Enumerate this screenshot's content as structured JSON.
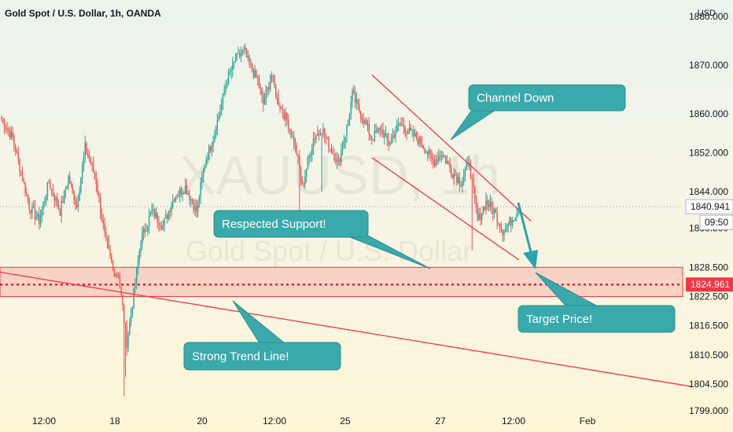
{
  "header": {
    "title": "Gold Spot / U.S. Dollar, 1h, OANDA",
    "currency": "USD"
  },
  "watermark": {
    "symbol": "XAUUSD, 1h",
    "description": "Gold Spot / U.S. Dollar"
  },
  "colors": {
    "up": "#26a69a",
    "down": "#ef5350",
    "annotation": "#f23645",
    "callout": "#3aa9ab",
    "price_tag": "#f23645"
  },
  "chart_data": {
    "type": "candlestick",
    "ylim": [
      1799,
      1880
    ],
    "x_ticks": [
      "12:00",
      "18",
      "20",
      "12:00",
      "25",
      "27",
      "12:00",
      "Feb"
    ],
    "y_ticks": [
      1799,
      1804.5,
      1810.5,
      1816.5,
      1822.5,
      1828.5,
      1836.5,
      1844,
      1852,
      1860,
      1870,
      1880
    ],
    "y_tick_labels": [
      "1799.000",
      "1804.500",
      "1810.500",
      "1816.500",
      "1822.500",
      "1828.500",
      "1836.500",
      "1844.000",
      "1852.000",
      "1860.000",
      "1870.000",
      "1880.000"
    ],
    "current_price": 1840.941,
    "countdown": "09:50",
    "target_price": 1824.961,
    "series_anchors": [
      [
        0,
        1859
      ],
      [
        8,
        1855
      ],
      [
        14,
        1848
      ],
      [
        20,
        1841
      ],
      [
        27,
        1838
      ],
      [
        34,
        1846
      ],
      [
        42,
        1840
      ],
      [
        48,
        1847
      ],
      [
        54,
        1841
      ],
      [
        60,
        1853
      ],
      [
        64,
        1850
      ],
      [
        68,
        1846
      ],
      [
        74,
        1835
      ],
      [
        80,
        1828
      ],
      [
        84,
        1827
      ],
      [
        90,
        1813
      ],
      [
        94,
        1821
      ],
      [
        100,
        1834
      ],
      [
        108,
        1840
      ],
      [
        116,
        1837
      ],
      [
        124,
        1843
      ],
      [
        132,
        1845
      ],
      [
        140,
        1840
      ],
      [
        146,
        1850
      ],
      [
        152,
        1855
      ],
      [
        158,
        1862
      ],
      [
        162,
        1867
      ],
      [
        168,
        1871
      ],
      [
        174,
        1873
      ],
      [
        178,
        1870
      ],
      [
        184,
        1867
      ],
      [
        188,
        1862
      ],
      [
        194,
        1868
      ],
      [
        198,
        1863
      ],
      [
        206,
        1858
      ],
      [
        212,
        1852
      ],
      [
        216,
        1845
      ],
      [
        224,
        1855
      ],
      [
        230,
        1857
      ],
      [
        236,
        1853
      ],
      [
        242,
        1850
      ],
      [
        248,
        1857
      ],
      [
        252,
        1864
      ],
      [
        258,
        1860
      ],
      [
        266,
        1855
      ],
      [
        272,
        1857
      ],
      [
        278,
        1854
      ],
      [
        286,
        1858
      ],
      [
        294,
        1856
      ],
      [
        302,
        1854
      ],
      [
        310,
        1850
      ],
      [
        316,
        1852
      ],
      [
        324,
        1848
      ],
      [
        330,
        1846
      ],
      [
        336,
        1850
      ],
      [
        342,
        1838
      ],
      [
        348,
        1842
      ],
      [
        354,
        1840
      ],
      [
        360,
        1836
      ],
      [
        366,
        1838
      ],
      [
        372,
        1841
      ]
    ],
    "sup_zone": [
      1822.5,
      1828.5
    ],
    "target_line": 1824.961,
    "trend_line": [
      [
        0,
        1827.5
      ],
      [
        880,
        1804
      ]
    ],
    "channel_upper": [
      [
        473,
        1868
      ],
      [
        675,
        1838
      ]
    ],
    "channel_lower": [
      [
        473,
        1851
      ],
      [
        660,
        1830
      ]
    ],
    "annotations": {
      "channel": "Channel Down",
      "support": "Respected Support!",
      "target": "Target Price!",
      "trend": "Strong Trend Line!"
    }
  }
}
